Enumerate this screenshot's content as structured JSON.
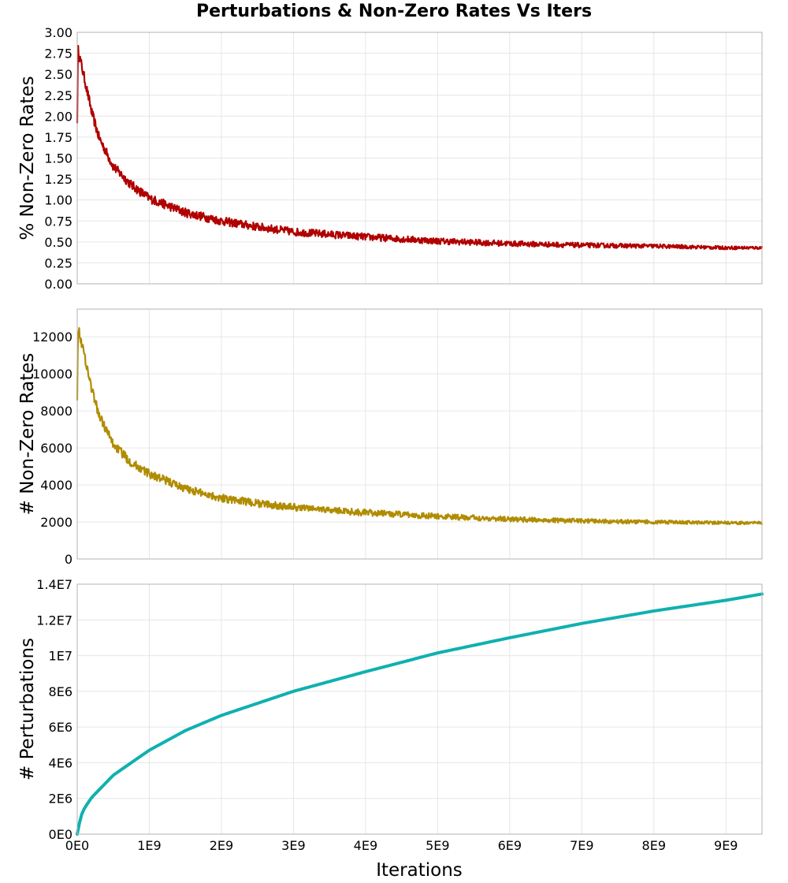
{
  "title": "Perturbations & Non-Zero Rates Vs Iters",
  "chart_data": {
    "type": "line",
    "title": "Perturbations & Non-Zero Rates Vs Iters",
    "xlabel": "Iterations",
    "xlim": [
      0,
      9500000000
    ],
    "x_ticks": [
      "0E0",
      "1E9",
      "2E9",
      "3E9",
      "4E9",
      "5E9",
      "6E9",
      "7E9",
      "8E9",
      "9E9"
    ],
    "x_tick_values": [
      0,
      1000000000,
      2000000000,
      3000000000,
      4000000000,
      5000000000,
      6000000000,
      7000000000,
      8000000000,
      9000000000
    ],
    "grid": true,
    "panels": [
      {
        "ylabel": "% Non-Zero Rates",
        "ylim": [
          0,
          3.0
        ],
        "y_ticks": [
          "0.00",
          "0.25",
          "0.50",
          "0.75",
          "1.00",
          "1.25",
          "1.50",
          "1.75",
          "2.00",
          "2.25",
          "2.50",
          "2.75",
          "3.00"
        ],
        "y_tick_values": [
          0,
          0.25,
          0.5,
          0.75,
          1.0,
          1.25,
          1.5,
          1.75,
          2.0,
          2.25,
          2.5,
          2.75,
          3.0
        ],
        "color": "#b00000",
        "noise_amplitude": [
          0.1,
          0.03
        ],
        "series": [
          {
            "x": [
              0,
              10000000,
              30000000,
              100000000,
              200000000,
              300000000,
              500000000,
              750000000,
              1000000000,
              1500000000,
              2000000000,
              2500000000,
              3000000000,
              4000000000,
              5000000000,
              6000000000,
              7000000000,
              8000000000,
              9000000000,
              9500000000
            ],
            "values": [
              1.97,
              2.8,
              2.72,
              2.45,
              2.05,
              1.75,
              1.4,
              1.18,
              1.02,
              0.85,
              0.75,
              0.68,
              0.62,
              0.56,
              0.51,
              0.48,
              0.46,
              0.45,
              0.43,
              0.43
            ]
          }
        ]
      },
      {
        "ylabel": "# Non-Zero Rates",
        "ylim": [
          0,
          13500
        ],
        "y_ticks": [
          "0",
          "2000",
          "4000",
          "6000",
          "8000",
          "10000",
          "12000"
        ],
        "y_tick_values": [
          0,
          2000,
          4000,
          6000,
          8000,
          10000,
          12000
        ],
        "color": "#b08c00",
        "noise_amplitude": [
          420,
          120
        ],
        "series": [
          {
            "x": [
              0,
              10000000,
              30000000,
              100000000,
              200000000,
              300000000,
              500000000,
              750000000,
              1000000000,
              1500000000,
              2000000000,
              2500000000,
              3000000000,
              4000000000,
              5000000000,
              6000000000,
              7000000000,
              8000000000,
              9000000000,
              9500000000
            ],
            "values": [
              8800,
              12500,
              12200,
              11000,
              9200,
              7800,
              6200,
              5200,
              4600,
              3800,
              3300,
              3000,
              2800,
              2500,
              2300,
              2150,
              2050,
              2000,
              1950,
              1950
            ]
          }
        ]
      },
      {
        "ylabel": "# Perturbations",
        "ylim": [
          0,
          14000000
        ],
        "y_ticks": [
          "0E0",
          "2E6",
          "4E6",
          "6E6",
          "8E6",
          "1E7",
          "1.2E7",
          "1.4E7"
        ],
        "y_tick_values": [
          0,
          2000000,
          4000000,
          6000000,
          8000000,
          10000000,
          12000000,
          14000000
        ],
        "color": "#10b0b0",
        "noise_amplitude": [
          0,
          0
        ],
        "series": [
          {
            "x": [
              0,
              50000000,
              100000000,
              200000000,
              500000000,
              1000000000,
              1500000000,
              2000000000,
              3000000000,
              4000000000,
              5000000000,
              6000000000,
              7000000000,
              8000000000,
              9000000000,
              9500000000
            ],
            "values": [
              0,
              1000000,
              1450000,
              2050000,
              3300000,
              4700000,
              5800000,
              6650000,
              8000000,
              9100000,
              10150000,
              11000000,
              11800000,
              12500000,
              13100000,
              13450000
            ]
          }
        ]
      }
    ]
  }
}
